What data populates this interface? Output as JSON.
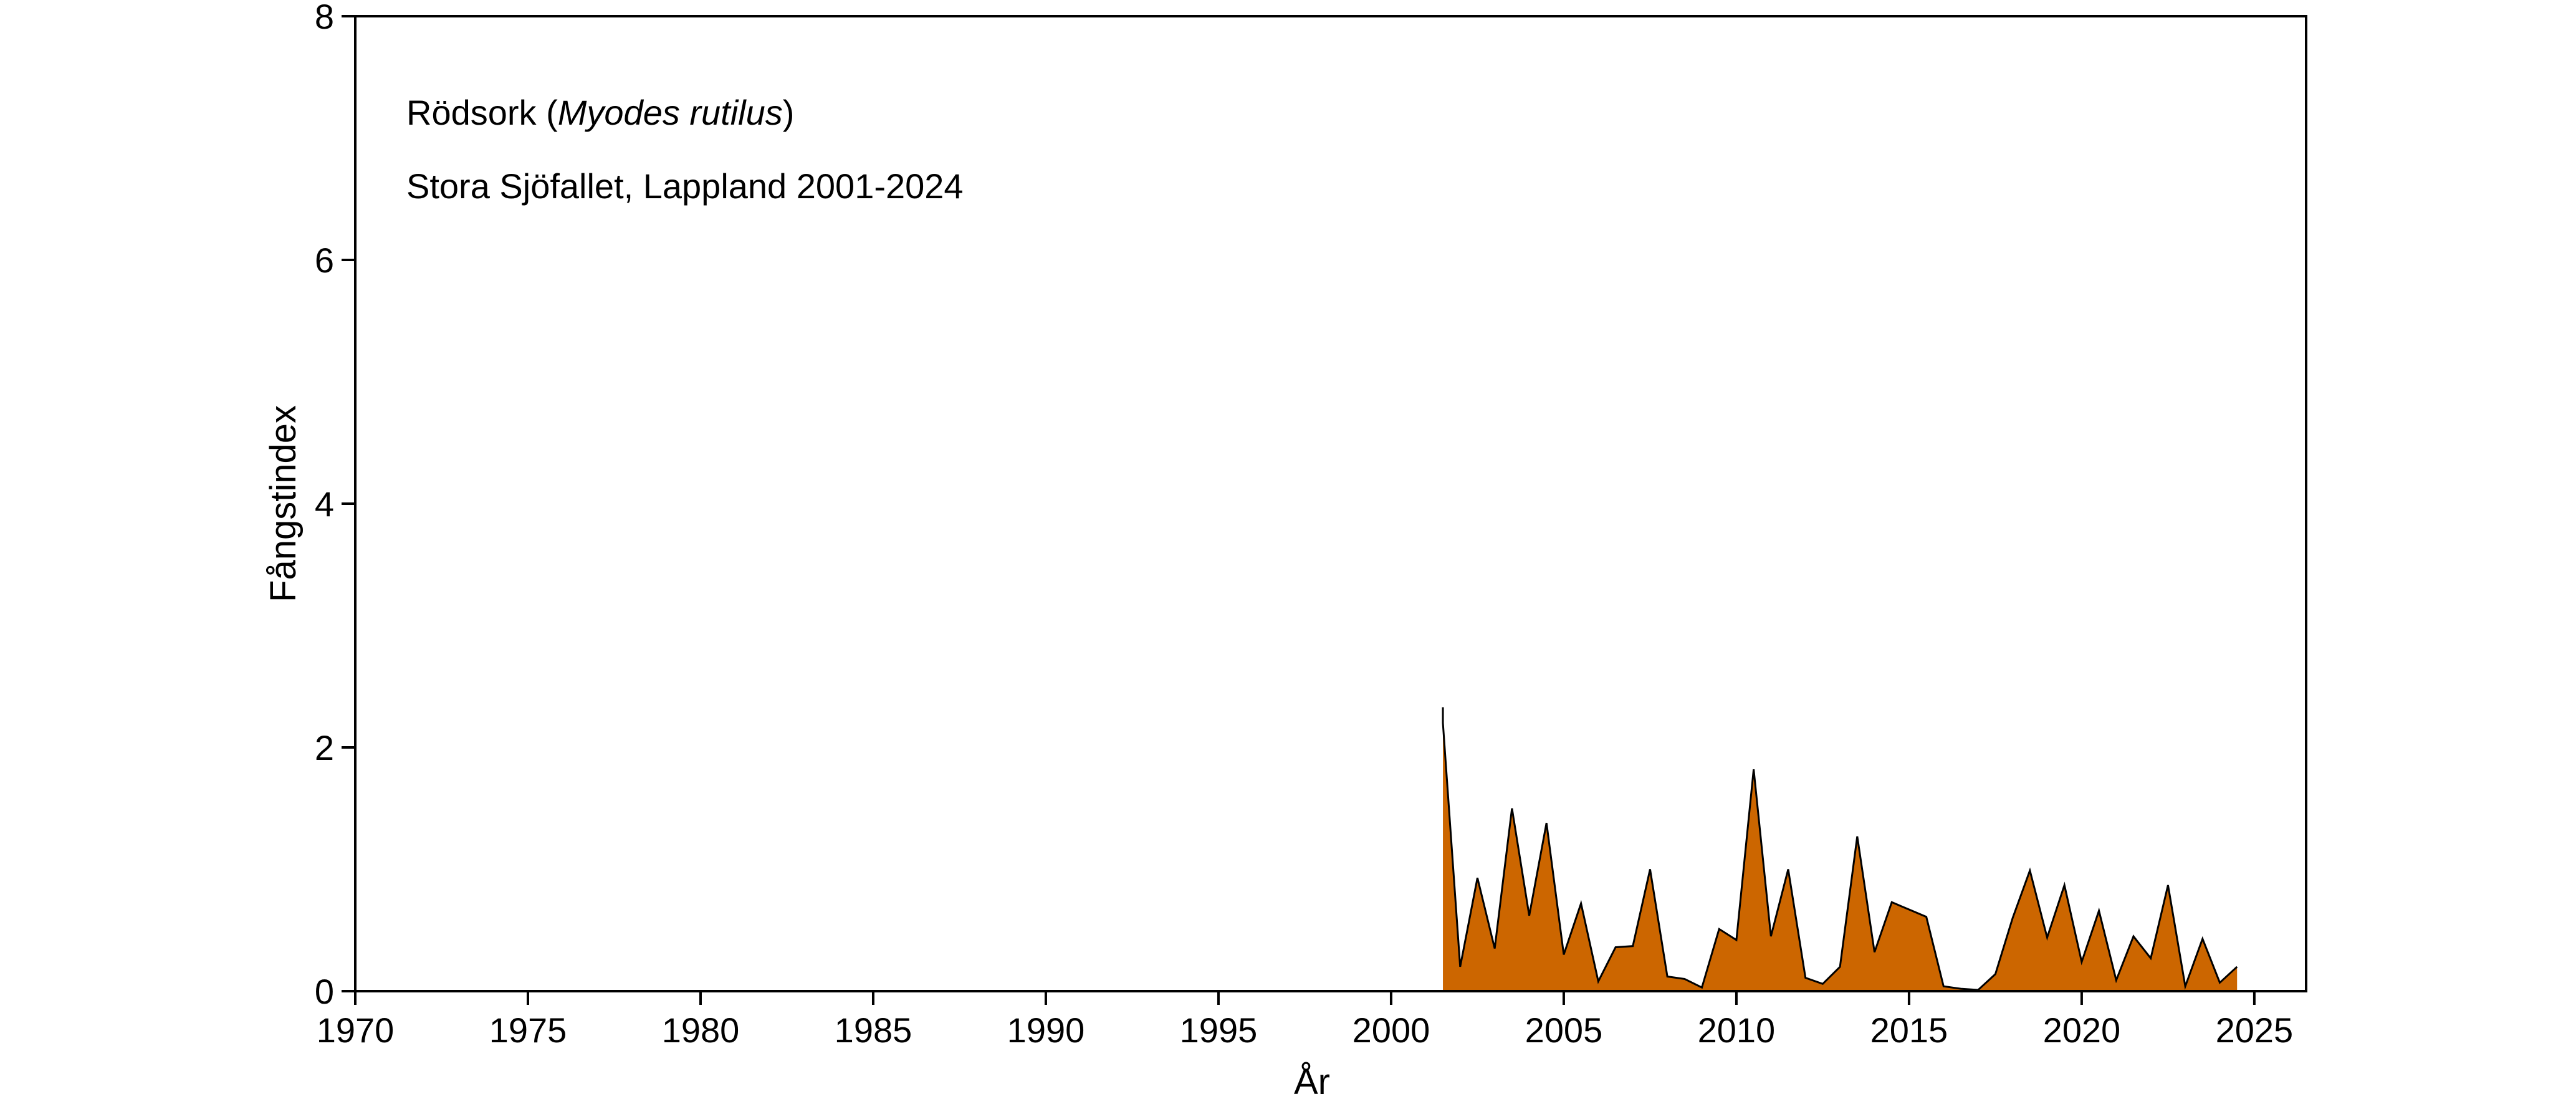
{
  "chart_data": {
    "type": "area",
    "title": "",
    "annotation_species": "Rödsork",
    "annotation_latin": "Myodes rutilus",
    "annotation_site": "Stora Sjöfallet, Lappland 2001-2024",
    "xlabel": "År",
    "ylabel": "Fångstindex",
    "xlim": [
      1970,
      2026.5
    ],
    "ylim": [
      0,
      8
    ],
    "xticks": [
      1970,
      1975,
      1980,
      1985,
      1990,
      1995,
      2000,
      2005,
      2010,
      2015,
      2020,
      2025
    ],
    "yticks": [
      0,
      2,
      4,
      6,
      8
    ],
    "grid": false,
    "fill_color": "#CC6600",
    "line_color": "#000000",
    "x": [
      2001.5,
      2001.5,
      2002.0,
      2002.5,
      2003.0,
      2003.5,
      2004.0,
      2004.5,
      2005.0,
      2005.5,
      2006.0,
      2006.5,
      2007.0,
      2007.5,
      2008.0,
      2008.5,
      2009.0,
      2009.5,
      2010.0,
      2010.5,
      2011.0,
      2011.5,
      2012.0,
      2012.5,
      2013.0,
      2013.5,
      2014.0,
      2014.5,
      2015.0,
      2015.5,
      2016.0,
      2016.5,
      2017.0,
      2017.5,
      2018.0,
      2018.5,
      2019.0,
      2019.5,
      2020.0,
      2020.5,
      2021.0,
      2021.5,
      2022.0,
      2022.5,
      2023.0,
      2023.5,
      2024.0,
      2024.5
    ],
    "y": [
      2.33,
      2.2,
      0.2,
      0.93,
      0.35,
      1.5,
      0.62,
      1.38,
      0.3,
      0.72,
      0.08,
      0.36,
      0.37,
      1.0,
      0.12,
      0.1,
      0.03,
      0.51,
      0.42,
      1.82,
      0.45,
      1.0,
      0.11,
      0.06,
      0.2,
      1.27,
      0.32,
      0.73,
      0.67,
      0.61,
      0.04,
      0.02,
      0.01,
      0.14,
      0.6,
      0.99,
      0.44,
      0.87,
      0.24,
      0.66,
      0.09,
      0.45,
      0.27,
      0.87,
      0.04,
      0.43,
      0.07,
      0.2
    ]
  }
}
